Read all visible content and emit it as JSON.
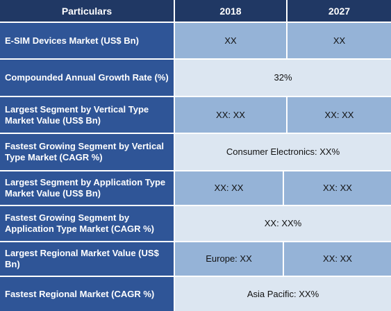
{
  "header": {
    "col1": "Particulars",
    "col2": "2018",
    "col3": "2027"
  },
  "rows": [
    {
      "label": "E-SIM Devices Market (US$ Bn)",
      "v2018": "XX",
      "v2027": "XX"
    },
    {
      "label": "Compounded Annual Growth Rate (%)",
      "value": "32%"
    },
    {
      "label": "Largest Segment by Vertical Type Market Value (US$ Bn)",
      "v2018": "XX: XX",
      "v2027": "XX: XX"
    },
    {
      "label": "Fastest Growing Segment by Vertical Type Market (CAGR %)",
      "value": "Consumer Electronics: XX%"
    },
    {
      "label": "Largest Segment by Application Type Market Value (US$ Bn)",
      "v2018": "XX: XX",
      "v2027": "XX: XX"
    },
    {
      "label": "Fastest Growing Segment by Application Type Market (CAGR %)",
      "value": "XX: XX%"
    },
    {
      "label": "Largest Regional Market Value (US$ Bn)",
      "v2018": "Europe: XX",
      "v2027": "XX: XX"
    },
    {
      "label": "Fastest Regional Market (CAGR %)",
      "value": "Asia Pacific: XX%"
    }
  ]
}
